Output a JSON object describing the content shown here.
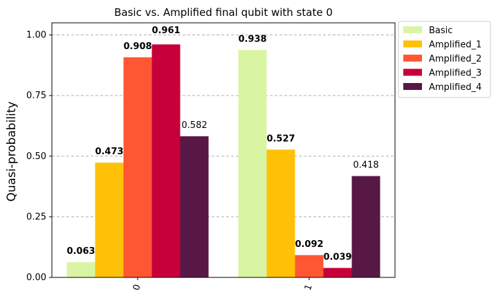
{
  "chart_data": {
    "type": "bar",
    "title": "Basic vs. Amplified final qubit with state 0",
    "xlabel": "",
    "ylabel": "Quasi-probability",
    "categories": [
      "0",
      "1"
    ],
    "ylim": [
      0,
      1.05
    ],
    "yticks": [
      "0.00",
      "0.25",
      "0.50",
      "0.75",
      "1.00"
    ],
    "grid": "horizontal dashed",
    "legend_position": "outside-top-right",
    "series": [
      {
        "name": "Basic",
        "color": "#d9f5a3",
        "values": [
          0.063,
          0.938
        ],
        "labels": [
          "0.063",
          "0.938"
        ]
      },
      {
        "name": "Amplified_1",
        "color": "#ffc107",
        "values": [
          0.473,
          0.527
        ],
        "labels": [
          "0.473",
          "0.527"
        ]
      },
      {
        "name": "Amplified_2",
        "color": "#ff5733",
        "values": [
          0.908,
          0.092
        ],
        "labels": [
          "0.908",
          "0.092"
        ]
      },
      {
        "name": "Amplified_3",
        "color": "#c70039",
        "values": [
          0.961,
          0.039
        ],
        "labels": [
          "0.961",
          "0.039"
        ]
      },
      {
        "name": "Amplified_4",
        "color": "#581845",
        "values": [
          0.582,
          0.418
        ],
        "labels": [
          "0.582",
          "0.418"
        ]
      }
    ]
  }
}
